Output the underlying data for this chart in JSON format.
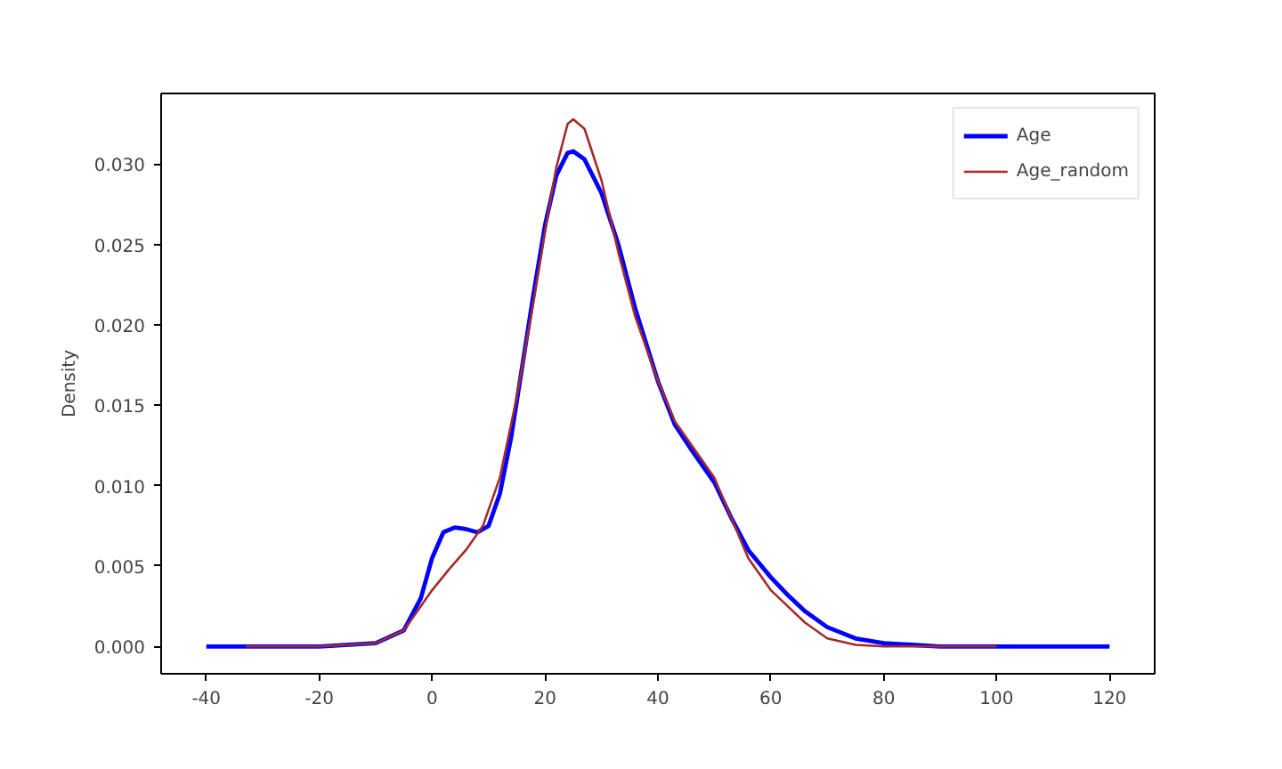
{
  "chart_data": {
    "type": "line",
    "ylabel": "Density",
    "xlim": [
      -48,
      128
    ],
    "xticks": [
      -40,
      -20,
      0,
      20,
      40,
      60,
      80,
      100,
      120
    ],
    "ylim": [
      -0.0017,
      0.0344
    ],
    "yticks": [
      {
        "value": 0,
        "label": "0.000"
      },
      {
        "value": 0.005,
        "label": "0.005"
      },
      {
        "value": 0.01,
        "label": "0.010"
      },
      {
        "value": 0.015,
        "label": "0.015"
      },
      {
        "value": 0.02,
        "label": "0.020"
      },
      {
        "value": 0.025,
        "label": "0.025"
      },
      {
        "value": 0.03,
        "label": "0.030"
      }
    ],
    "grid": false,
    "legend": "top right",
    "line_style": "solid",
    "marker": "none",
    "series": [
      {
        "name": "Age",
        "color": "#0000ff",
        "x": [
          -40,
          -20,
          -10,
          -5,
          -2,
          0,
          2,
          4,
          6,
          8,
          10,
          12,
          14,
          16,
          18,
          20,
          22,
          24,
          25,
          27,
          30,
          33,
          36,
          40,
          43,
          46,
          50,
          53,
          56,
          60,
          63,
          66,
          70,
          75,
          80,
          85,
          90,
          100,
          120
        ],
        "values": [
          0,
          0,
          0.0002,
          0.001,
          0.003,
          0.0055,
          0.0071,
          0.0074,
          0.0073,
          0.0071,
          0.0075,
          0.0095,
          0.013,
          0.0175,
          0.022,
          0.0262,
          0.0293,
          0.0307,
          0.0308,
          0.0303,
          0.0282,
          0.025,
          0.021,
          0.0165,
          0.0138,
          0.0122,
          0.0102,
          0.008,
          0.006,
          0.0043,
          0.0032,
          0.0022,
          0.0012,
          0.0005,
          0.0002,
          0.0001,
          0,
          0,
          0
        ]
      },
      {
        "name": "Age_random",
        "color": "#a52a2a",
        "x": [
          -33,
          -20,
          -10,
          -5,
          0,
          3,
          6,
          9,
          12,
          15,
          18,
          20,
          22,
          24,
          25,
          27,
          30,
          33,
          36,
          40,
          43,
          46,
          50,
          53,
          56,
          60,
          63,
          66,
          70,
          75,
          80,
          100
        ],
        "values": [
          0,
          0,
          0.0002,
          0.001,
          0.0035,
          0.0048,
          0.006,
          0.0075,
          0.0105,
          0.0155,
          0.0215,
          0.0258,
          0.0298,
          0.0325,
          0.0328,
          0.0322,
          0.029,
          0.0245,
          0.0205,
          0.0165,
          0.014,
          0.0125,
          0.0105,
          0.008,
          0.0055,
          0.0035,
          0.0025,
          0.0015,
          0.0005,
          0.0001,
          0,
          0
        ]
      }
    ]
  }
}
